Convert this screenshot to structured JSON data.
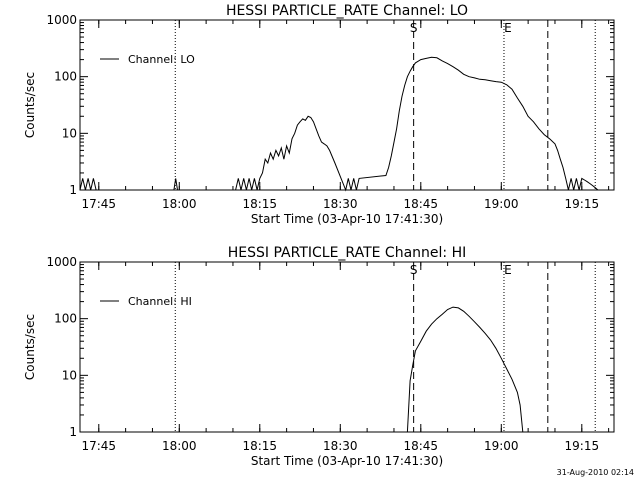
{
  "footer": {
    "timestamp": "31-Aug-2010 02:14"
  },
  "colors": {
    "background": "#ffffff",
    "foreground": "#000000"
  },
  "chart_data": [
    {
      "type": "line",
      "title": "HESSI PARTICLE_RATE Channel: LO",
      "ylabel": "Counts/sec",
      "xlabel": "Start Time (03-Apr-10 17:41:30)",
      "y_scale": "log",
      "ylim": [
        1,
        1000
      ],
      "y_ticks": [
        "1",
        "10",
        "100",
        "1000"
      ],
      "xlim": [
        "17:41:30",
        "19:21:00"
      ],
      "x_ticks": [
        "17:45",
        "18:00",
        "18:15",
        "18:30",
        "18:45",
        "19:00",
        "19:15"
      ],
      "legend": {
        "position": "top-left",
        "entries": [
          "Channel: LO"
        ]
      },
      "flags": {
        "S": "18:43:30",
        "E": "19:00:30"
      },
      "series": [
        {
          "name": "Channel: LO",
          "x": [
            "17:41:30",
            "17:42:00",
            "17:42:30",
            "17:43:00",
            "17:43:30",
            "17:44:00",
            "17:44:30",
            "17:45:00",
            "17:59:00",
            "17:59:20",
            "17:59:40",
            "18:10:30",
            "18:11:00",
            "18:11:30",
            "18:12:00",
            "18:12:30",
            "18:13:00",
            "18:13:30",
            "18:14:00",
            "18:14:30",
            "18:15:00",
            "18:15:30",
            "18:16:00",
            "18:16:30",
            "18:17:00",
            "18:17:30",
            "18:18:00",
            "18:18:30",
            "18:19:00",
            "18:19:30",
            "18:20:00",
            "18:20:30",
            "18:21:00",
            "18:21:30",
            "18:22:00",
            "18:22:30",
            "18:23:00",
            "18:23:30",
            "18:24:00",
            "18:24:30",
            "18:25:00",
            "18:25:30",
            "18:26:00",
            "18:26:30",
            "18:27:00",
            "18:27:30",
            "18:28:00",
            "18:29:00",
            "18:31:00",
            "18:31:30",
            "18:32:00",
            "18:32:30",
            "18:33:00",
            "18:33:30",
            "18:38:30",
            "18:39:00",
            "18:39:30",
            "18:40:00",
            "18:40:30",
            "18:41:00",
            "18:41:30",
            "18:42:00",
            "18:42:30",
            "18:43:00",
            "18:43:30",
            "18:44:00",
            "18:45:00",
            "18:46:00",
            "18:47:00",
            "18:48:00",
            "18:49:00",
            "18:50:00",
            "18:51:00",
            "18:52:00",
            "18:53:00",
            "18:54:00",
            "18:55:00",
            "18:56:00",
            "18:57:00",
            "18:58:00",
            "18:59:00",
            "19:00:00",
            "19:01:00",
            "19:02:00",
            "19:03:00",
            "19:04:00",
            "19:05:00",
            "19:06:00",
            "19:07:00",
            "19:08:00",
            "19:09:00",
            "19:10:00",
            "19:10:30",
            "19:11:00",
            "19:11:30",
            "19:12:00",
            "19:12:30",
            "19:13:00",
            "19:13:30",
            "19:14:00",
            "19:14:30",
            "19:15:00",
            "19:15:30",
            "19:16:00",
            "19:16:30",
            "19:17:00",
            "19:17:30",
            "19:18:00"
          ],
          "y": [
            1,
            1.6,
            1,
            1.6,
            1,
            1.6,
            1,
            1,
            1,
            1.6,
            1,
            1,
            1.6,
            1,
            1.6,
            1,
            1.6,
            1,
            1.6,
            1,
            1.6,
            2,
            3.5,
            3,
            4.5,
            3.5,
            5,
            4,
            5.5,
            3.5,
            6,
            4.5,
            8,
            10,
            14,
            16,
            18,
            17,
            20,
            19,
            16,
            12,
            9,
            7,
            6.5,
            6,
            5,
            3,
            1,
            1.6,
            1,
            1.6,
            1,
            1.6,
            1.8,
            2.5,
            4,
            7,
            12,
            25,
            45,
            70,
            100,
            125,
            150,
            175,
            200,
            210,
            220,
            215,
            190,
            170,
            150,
            130,
            110,
            100,
            95,
            90,
            88,
            85,
            82,
            80,
            72,
            60,
            42,
            30,
            20,
            16,
            12,
            9.5,
            8,
            6.5,
            5,
            3.5,
            2.5,
            1.6,
            1,
            1.6,
            1,
            1.6,
            1,
            1.6,
            1.5,
            1.4,
            1.3,
            1.2,
            1.1,
            1
          ]
        }
      ]
    },
    {
      "type": "line",
      "title": "HESSI PARTICLE_RATE Channel: HI",
      "ylabel": "Counts/sec",
      "xlabel": "Start Time (03-Apr-10 17:41:30)",
      "y_scale": "log",
      "ylim": [
        1,
        1000
      ],
      "y_ticks": [
        "1",
        "10",
        "100",
        "1000"
      ],
      "xlim": [
        "17:41:30",
        "19:21:00"
      ],
      "x_ticks": [
        "17:45",
        "18:00",
        "18:15",
        "18:30",
        "18:45",
        "19:00",
        "19:15"
      ],
      "legend": {
        "position": "top-left",
        "entries": [
          "Channel: HI"
        ]
      },
      "flags": {
        "S": "18:43:30",
        "E": "19:00:30"
      },
      "series": [
        {
          "name": "Channel: HI",
          "x": [
            "18:42:30",
            "18:43:00",
            "18:43:30",
            "18:44:00",
            "18:45:00",
            "18:46:00",
            "18:47:00",
            "18:48:00",
            "18:49:00",
            "18:50:00",
            "18:51:00",
            "18:52:00",
            "18:53:00",
            "18:54:00",
            "18:55:00",
            "18:56:00",
            "18:57:00",
            "18:58:00",
            "18:59:00",
            "19:00:00",
            "19:01:00",
            "19:02:00",
            "19:03:00",
            "19:03:30",
            "19:04:00"
          ],
          "y": [
            1,
            8,
            15,
            27,
            40,
            60,
            80,
            100,
            120,
            145,
            160,
            155,
            135,
            110,
            88,
            70,
            55,
            42,
            30,
            20,
            13,
            8.5,
            5,
            3,
            1
          ]
        }
      ]
    }
  ]
}
